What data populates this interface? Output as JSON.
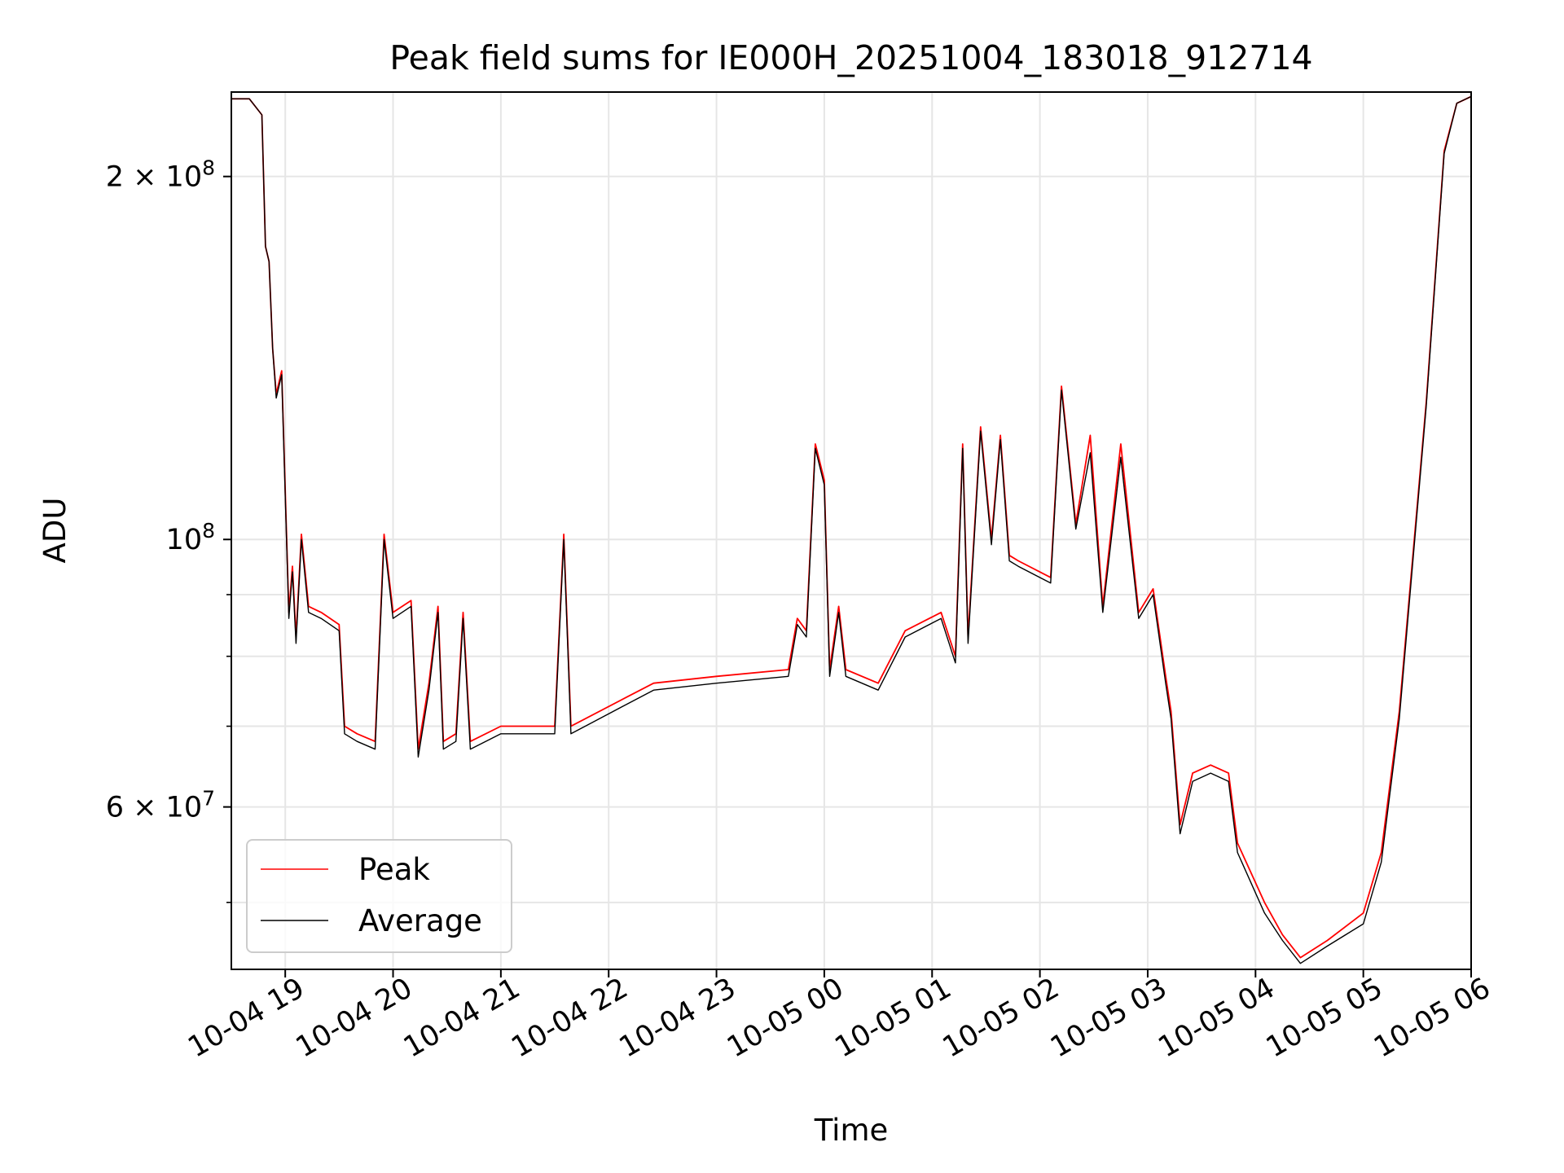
{
  "chart_data": {
    "type": "line",
    "title": "Peak field sums for IE000H_20251004_183018_912714",
    "xlabel": "Time",
    "ylabel": "ADU",
    "yscale": "log",
    "ylim": [
      44000000,
      235000000
    ],
    "xlim": [
      "2025-10-04 18:30",
      "2025-10-05 06:00"
    ],
    "x_ticks": [
      {
        "t": "2025-10-04 19:00",
        "label": "10-04 19"
      },
      {
        "t": "2025-10-04 20:00",
        "label": "10-04 20"
      },
      {
        "t": "2025-10-04 21:00",
        "label": "10-04 21"
      },
      {
        "t": "2025-10-04 22:00",
        "label": "10-04 22"
      },
      {
        "t": "2025-10-04 23:00",
        "label": "10-04 23"
      },
      {
        "t": "2025-10-05 00:00",
        "label": "10-05 00"
      },
      {
        "t": "2025-10-05 01:00",
        "label": "10-05 01"
      },
      {
        "t": "2025-10-05 02:00",
        "label": "10-05 02"
      },
      {
        "t": "2025-10-05 03:00",
        "label": "10-05 03"
      },
      {
        "t": "2025-10-05 04:00",
        "label": "10-05 04"
      },
      {
        "t": "2025-10-05 05:00",
        "label": "10-05 05"
      },
      {
        "t": "2025-10-05 06:00",
        "label": "10-05 06"
      }
    ],
    "y_ticks_major": [
      {
        "v": 100000000,
        "mant": "",
        "exp": "8"
      },
      {
        "v": 200000000,
        "mant": "2",
        "exp": "8"
      },
      {
        "v": 60000000,
        "mant": "6",
        "exp": "7"
      }
    ],
    "y_ticks_minor": [
      50000000,
      70000000,
      80000000,
      90000000
    ],
    "grid": true,
    "legend": "lower-left",
    "series": [
      {
        "name": "Peak",
        "color": "#ff0000",
        "points": [
          [
            "2025-10-04 18:30",
            232000000
          ],
          [
            "2025-10-04 18:40",
            232000000
          ],
          [
            "2025-10-04 18:47",
            225000000
          ],
          [
            "2025-10-04 18:49",
            175000000
          ],
          [
            "2025-10-04 18:51",
            170000000
          ],
          [
            "2025-10-04 18:53",
            144000000
          ],
          [
            "2025-10-04 18:55",
            132000000
          ],
          [
            "2025-10-04 18:58",
            138000000
          ],
          [
            "2025-10-04 19:02",
            87000000
          ],
          [
            "2025-10-04 19:04",
            95000000
          ],
          [
            "2025-10-04 19:06",
            83000000
          ],
          [
            "2025-10-04 19:09",
            101000000
          ],
          [
            "2025-10-04 19:13",
            88000000
          ],
          [
            "2025-10-04 19:20",
            87000000
          ],
          [
            "2025-10-04 19:30",
            85000000
          ],
          [
            "2025-10-04 19:33",
            70000000
          ],
          [
            "2025-10-04 19:40",
            69000000
          ],
          [
            "2025-10-04 19:50",
            68000000
          ],
          [
            "2025-10-04 19:55",
            101000000
          ],
          [
            "2025-10-04 20:00",
            87000000
          ],
          [
            "2025-10-04 20:10",
            89000000
          ],
          [
            "2025-10-04 20:14",
            67000000
          ],
          [
            "2025-10-04 20:20",
            76000000
          ],
          [
            "2025-10-04 20:25",
            88000000
          ],
          [
            "2025-10-04 20:28",
            68000000
          ],
          [
            "2025-10-04 20:35",
            69000000
          ],
          [
            "2025-10-04 20:39",
            87000000
          ],
          [
            "2025-10-04 20:43",
            68000000
          ],
          [
            "2025-10-04 21:00",
            70000000
          ],
          [
            "2025-10-04 21:30",
            70000000
          ],
          [
            "2025-10-04 21:35",
            101000000
          ],
          [
            "2025-10-04 21:39",
            70000000
          ],
          [
            "2025-10-04 22:10",
            74000000
          ],
          [
            "2025-10-04 22:25",
            76000000
          ],
          [
            "2025-10-04 23:00",
            77000000
          ],
          [
            "2025-10-04 23:40",
            78000000
          ],
          [
            "2025-10-04 23:45",
            86000000
          ],
          [
            "2025-10-04 23:50",
            84000000
          ],
          [
            "2025-10-04 23:55",
            120000000
          ],
          [
            "2025-10-05 00:00",
            112000000
          ],
          [
            "2025-10-05 00:03",
            78000000
          ],
          [
            "2025-10-05 00:08",
            88000000
          ],
          [
            "2025-10-05 00:12",
            78000000
          ],
          [
            "2025-10-05 00:30",
            76000000
          ],
          [
            "2025-10-05 00:45",
            84000000
          ],
          [
            "2025-10-05 01:05",
            87000000
          ],
          [
            "2025-10-05 01:13",
            80000000
          ],
          [
            "2025-10-05 01:17",
            120000000
          ],
          [
            "2025-10-05 01:20",
            83000000
          ],
          [
            "2025-10-05 01:27",
            124000000
          ],
          [
            "2025-10-05 01:33",
            100000000
          ],
          [
            "2025-10-05 01:38",
            122000000
          ],
          [
            "2025-10-05 01:43",
            97000000
          ],
          [
            "2025-10-05 01:48",
            96000000
          ],
          [
            "2025-10-05 02:06",
            93000000
          ],
          [
            "2025-10-05 02:12",
            134000000
          ],
          [
            "2025-10-05 02:20",
            103000000
          ],
          [
            "2025-10-05 02:28",
            122000000
          ],
          [
            "2025-10-05 02:35",
            88000000
          ],
          [
            "2025-10-05 02:45",
            120000000
          ],
          [
            "2025-10-05 02:55",
            87000000
          ],
          [
            "2025-10-05 03:03",
            91000000
          ],
          [
            "2025-10-05 03:10",
            77000000
          ],
          [
            "2025-10-05 03:13",
            72000000
          ],
          [
            "2025-10-05 03:18",
            58000000
          ],
          [
            "2025-10-05 03:25",
            64000000
          ],
          [
            "2025-10-05 03:35",
            65000000
          ],
          [
            "2025-10-05 03:45",
            64000000
          ],
          [
            "2025-10-05 03:50",
            56000000
          ],
          [
            "2025-10-05 04:05",
            50000000
          ],
          [
            "2025-10-05 04:15",
            47000000
          ],
          [
            "2025-10-05 04:25",
            45000000
          ],
          [
            "2025-10-05 04:40",
            46500000
          ],
          [
            "2025-10-05 05:00",
            49000000
          ],
          [
            "2025-10-05 05:10",
            55000000
          ],
          [
            "2025-10-05 05:20",
            72000000
          ],
          [
            "2025-10-05 05:35",
            130000000
          ],
          [
            "2025-10-05 05:45",
            210000000
          ],
          [
            "2025-10-05 05:52",
            230000000
          ],
          [
            "2025-10-05 06:00",
            233000000
          ]
        ]
      },
      {
        "name": "Average",
        "color": "#000000",
        "points": [
          [
            "2025-10-04 18:30",
            232000000
          ],
          [
            "2025-10-04 18:40",
            232000000
          ],
          [
            "2025-10-04 18:47",
            225000000
          ],
          [
            "2025-10-04 18:49",
            175000000
          ],
          [
            "2025-10-04 18:51",
            170000000
          ],
          [
            "2025-10-04 18:53",
            144000000
          ],
          [
            "2025-10-04 18:55",
            131000000
          ],
          [
            "2025-10-04 18:58",
            137000000
          ],
          [
            "2025-10-04 19:02",
            86000000
          ],
          [
            "2025-10-04 19:04",
            94000000
          ],
          [
            "2025-10-04 19:06",
            82000000
          ],
          [
            "2025-10-04 19:09",
            100000000
          ],
          [
            "2025-10-04 19:13",
            87000000
          ],
          [
            "2025-10-04 19:20",
            86000000
          ],
          [
            "2025-10-04 19:30",
            84000000
          ],
          [
            "2025-10-04 19:33",
            69000000
          ],
          [
            "2025-10-04 19:40",
            68000000
          ],
          [
            "2025-10-04 19:50",
            67000000
          ],
          [
            "2025-10-04 19:55",
            100000000
          ],
          [
            "2025-10-04 20:00",
            86000000
          ],
          [
            "2025-10-04 20:10",
            88000000
          ],
          [
            "2025-10-04 20:14",
            66000000
          ],
          [
            "2025-10-04 20:20",
            75000000
          ],
          [
            "2025-10-04 20:25",
            87000000
          ],
          [
            "2025-10-04 20:28",
            67000000
          ],
          [
            "2025-10-04 20:35",
            68000000
          ],
          [
            "2025-10-04 20:39",
            86000000
          ],
          [
            "2025-10-04 20:43",
            67000000
          ],
          [
            "2025-10-04 21:00",
            69000000
          ],
          [
            "2025-10-04 21:30",
            69000000
          ],
          [
            "2025-10-04 21:35",
            100000000
          ],
          [
            "2025-10-04 21:39",
            69000000
          ],
          [
            "2025-10-04 22:10",
            73000000
          ],
          [
            "2025-10-04 22:25",
            75000000
          ],
          [
            "2025-10-04 23:00",
            76000000
          ],
          [
            "2025-10-04 23:40",
            77000000
          ],
          [
            "2025-10-04 23:45",
            85000000
          ],
          [
            "2025-10-04 23:50",
            83000000
          ],
          [
            "2025-10-04 23:55",
            119000000
          ],
          [
            "2025-10-05 00:00",
            111000000
          ],
          [
            "2025-10-05 00:03",
            77000000
          ],
          [
            "2025-10-05 00:08",
            87000000
          ],
          [
            "2025-10-05 00:12",
            77000000
          ],
          [
            "2025-10-05 00:30",
            75000000
          ],
          [
            "2025-10-05 00:45",
            83000000
          ],
          [
            "2025-10-05 01:05",
            86000000
          ],
          [
            "2025-10-05 01:13",
            79000000
          ],
          [
            "2025-10-05 01:17",
            119000000
          ],
          [
            "2025-10-05 01:20",
            82000000
          ],
          [
            "2025-10-05 01:27",
            123000000
          ],
          [
            "2025-10-05 01:33",
            99000000
          ],
          [
            "2025-10-05 01:38",
            121000000
          ],
          [
            "2025-10-05 01:43",
            96000000
          ],
          [
            "2025-10-05 01:48",
            95000000
          ],
          [
            "2025-10-05 02:06",
            92000000
          ],
          [
            "2025-10-05 02:12",
            133000000
          ],
          [
            "2025-10-05 02:20",
            102000000
          ],
          [
            "2025-10-05 02:28",
            118000000
          ],
          [
            "2025-10-05 02:35",
            87000000
          ],
          [
            "2025-10-05 02:45",
            117000000
          ],
          [
            "2025-10-05 02:55",
            86000000
          ],
          [
            "2025-10-05 03:03",
            90000000
          ],
          [
            "2025-10-05 03:10",
            76000000
          ],
          [
            "2025-10-05 03:13",
            71000000
          ],
          [
            "2025-10-05 03:18",
            57000000
          ],
          [
            "2025-10-05 03:25",
            63000000
          ],
          [
            "2025-10-05 03:35",
            64000000
          ],
          [
            "2025-10-05 03:45",
            63000000
          ],
          [
            "2025-10-05 03:50",
            55000000
          ],
          [
            "2025-10-05 04:05",
            49000000
          ],
          [
            "2025-10-05 04:15",
            46500000
          ],
          [
            "2025-10-05 04:25",
            44500000
          ],
          [
            "2025-10-05 04:40",
            46000000
          ],
          [
            "2025-10-05 05:00",
            48000000
          ],
          [
            "2025-10-05 05:10",
            54000000
          ],
          [
            "2025-10-05 05:20",
            71000000
          ],
          [
            "2025-10-05 05:35",
            129000000
          ],
          [
            "2025-10-05 05:45",
            209000000
          ],
          [
            "2025-10-05 05:52",
            230000000
          ],
          [
            "2025-10-05 06:00",
            233000000
          ]
        ]
      }
    ]
  }
}
